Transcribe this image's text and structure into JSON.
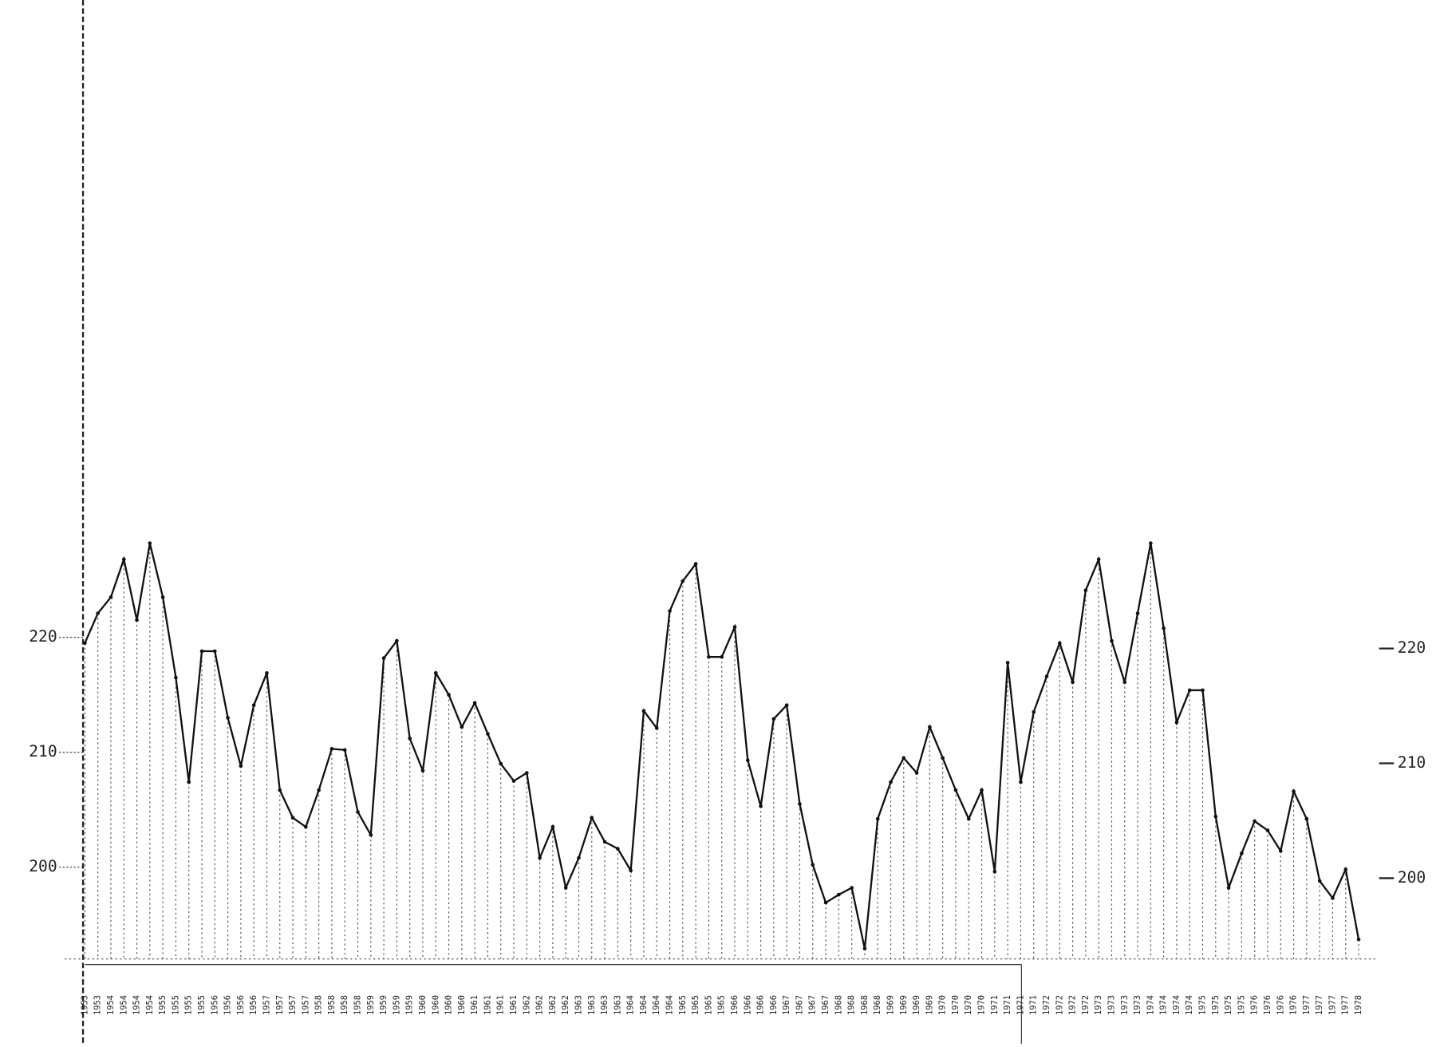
{
  "chart_data": {
    "type": "line",
    "categories": [
      "1953",
      "1953",
      "1954",
      "1954",
      "1954",
      "1954",
      "1955",
      "1955",
      "1955",
      "1955",
      "1956",
      "1956",
      "1956",
      "1956",
      "1957",
      "1957",
      "1957",
      "1957",
      "1958",
      "1958",
      "1958",
      "1958",
      "1959",
      "1959",
      "1959",
      "1959",
      "1960",
      "1960",
      "1960",
      "1960",
      "1961",
      "1961",
      "1961",
      "1961",
      "1962",
      "1962",
      "1962",
      "1962",
      "1963",
      "1963",
      "1963",
      "1963",
      "1964",
      "1964",
      "1964",
      "1964",
      "1965",
      "1965",
      "1965",
      "1965",
      "1966",
      "1966",
      "1966",
      "1966",
      "1967",
      "1967",
      "1967",
      "1967",
      "1968",
      "1968",
      "1968",
      "1968",
      "1969",
      "1969",
      "1969",
      "1969",
      "1970",
      "1970",
      "1970",
      "1970",
      "1971",
      "1971",
      "1971",
      "1971",
      "1972",
      "1972",
      "1972",
      "1972",
      "1973",
      "1973",
      "1973",
      "1973",
      "1974",
      "1974",
      "1974",
      "1974",
      "1975",
      "1975",
      "1975",
      "1975",
      "1976",
      "1976",
      "1976",
      "1976",
      "1977",
      "1977",
      "1977",
      "1977",
      "1978"
    ],
    "series": [
      {
        "color": "#111111",
        "values": [
          219.5,
          222.1,
          223.5,
          226.8,
          221.5,
          228.2,
          223.5,
          216.5,
          207.4,
          218.8,
          218.8,
          213,
          208.8,
          214.1,
          216.9,
          206.7,
          204.3,
          203.5,
          206.7,
          210.3,
          210.2,
          204.8,
          202.8,
          218.2,
          219.7,
          211.2,
          208.4,
          216.9,
          215,
          212.2,
          214.3,
          211.6,
          209,
          207.5,
          208.2,
          200.8,
          203.5,
          198.2,
          200.8,
          204.3,
          202.2,
          201.6,
          199.7,
          213.6,
          212.1,
          222.3,
          224.9,
          226.4,
          218.3,
          218.3,
          220.9,
          209.3,
          205.3,
          212.9,
          214.1,
          205.5,
          200.2,
          196.9,
          197.6,
          198.2,
          192.9,
          204.2,
          207.4,
          209.5,
          208.2,
          212.2,
          209.5,
          206.7,
          204.2,
          206.7,
          199.6,
          217.8,
          207.4,
          213.5,
          216.6,
          219.5,
          216.1,
          224.1,
          226.8,
          219.7,
          216.1,
          222.1,
          228.2,
          220.8,
          212.6,
          215.4,
          215.4,
          204.4,
          198.2,
          201.2,
          204,
          203.2,
          201.4,
          206.6,
          204.2,
          198.8,
          197.3,
          199.8,
          193.7
        ]
      }
    ],
    "ylim": [
      192,
      275.5
    ],
    "yticks": [
      200,
      210,
      220
    ]
  }
}
